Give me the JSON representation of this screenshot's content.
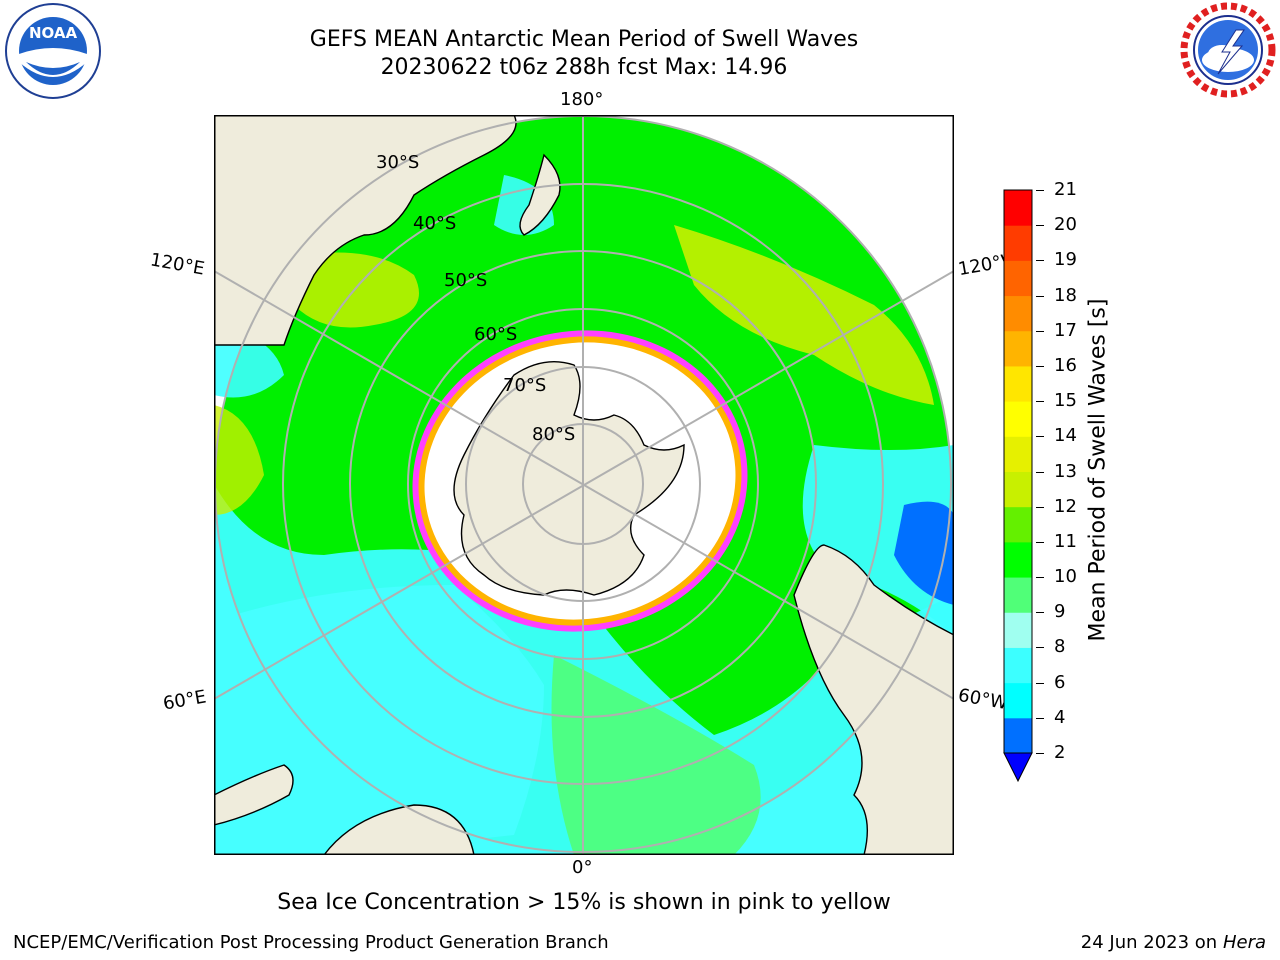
{
  "title_line_1": "GEFS MEAN Antarctic Mean Period of Swell Waves",
  "title_line_2": "20230622 t06z 288h fcst   Max: 14.96",
  "longitude_labels": {
    "top": "180°",
    "bottom": "0°",
    "upper_left": "120°E",
    "upper_right": "120°W",
    "lower_left": "60°E",
    "lower_right": "60°W"
  },
  "latitude_labels": [
    "30°S",
    "40°S",
    "50°S",
    "60°S",
    "70°S",
    "80°S"
  ],
  "colorbar": {
    "label": "Mean Period of Swell Waves [s]",
    "ticks": [
      "21",
      "20",
      "19",
      "18",
      "17",
      "16",
      "15",
      "14",
      "13",
      "12",
      "11",
      "10",
      "9",
      "8",
      "6",
      "4",
      "2"
    ],
    "bins": [
      {
        "from": 2,
        "to": 4,
        "color": "#0070ff"
      },
      {
        "from": 4,
        "to": 6,
        "color": "#00ffff"
      },
      {
        "from": 6,
        "to": 8,
        "color": "#3cffff"
      },
      {
        "from": 8,
        "to": 9,
        "color": "#a0fff0"
      },
      {
        "from": 9,
        "to": 10,
        "color": "#50ff78"
      },
      {
        "from": 10,
        "to": 11,
        "color": "#00ff00"
      },
      {
        "from": 11,
        "to": 12,
        "color": "#64f000"
      },
      {
        "from": 12,
        "to": 13,
        "color": "#c8f000"
      },
      {
        "from": 13,
        "to": 14,
        "color": "#e6f000"
      },
      {
        "from": 14,
        "to": 15,
        "color": "#ffff00"
      },
      {
        "from": 15,
        "to": 16,
        "color": "#ffe600"
      },
      {
        "from": 16,
        "to": 17,
        "color": "#ffb400"
      },
      {
        "from": 17,
        "to": 18,
        "color": "#ff8c00"
      },
      {
        "from": 18,
        "to": 19,
        "color": "#ff6400"
      },
      {
        "from": 19,
        "to": 20,
        "color": "#ff3c00"
      },
      {
        "from": 20,
        "to": 21,
        "color": "#ff0000"
      }
    ],
    "under_color": "#0000ff"
  },
  "colors": {
    "land": "#efecdc",
    "sea_ice_edge": "#ff40ff",
    "sea_ice_inner": "#ffffff",
    "grid": "#b0b0b0"
  },
  "note": "Sea Ice Concentration > 15% is shown in pink to yellow",
  "footer_left": "NCEP/EMC/Verification Post Processing Product Generation Branch",
  "footer_right_date": "24 Jun 2023 on",
  "footer_right_machine": "Hera",
  "noaa_logo_text": "NOAA",
  "nws_logo_text": "NATIONAL WEATHER SERVICE"
}
